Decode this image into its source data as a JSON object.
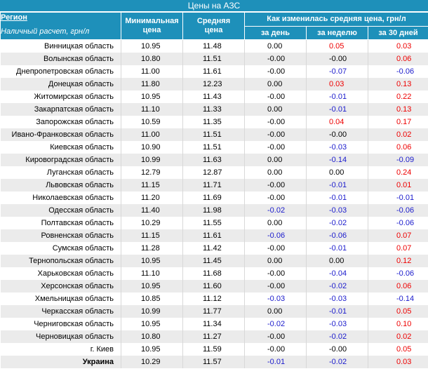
{
  "title": "Цены на АЗС",
  "header": {
    "region": "Регион",
    "payment": "Наличный расчет, грн/л",
    "min_price": [
      "Минимальная",
      "цена"
    ],
    "avg_price": [
      "Средняя",
      "цена"
    ],
    "change_group": "Как изменилась средняя цена, грн/л",
    "per_day": "за день",
    "per_week": "за неделю",
    "per_30": "за 30 дней"
  },
  "colors": {
    "header_bg": "#1e90ba",
    "increase": "#ee0000",
    "decrease": "#1a1acc",
    "stripe": "#ebebeb"
  },
  "rows": [
    {
      "region": "Винницкая область",
      "min": "10.95",
      "avg": "11.48",
      "day": "0.00",
      "week": "0.05",
      "month": "0.03"
    },
    {
      "region": "Волынская область",
      "min": "10.80",
      "avg": "11.51",
      "day": "-0.00",
      "week": "-0.00",
      "month": "0.06"
    },
    {
      "region": "Днепропетровская область",
      "min": "11.00",
      "avg": "11.61",
      "day": "-0.00",
      "week": "-0.07",
      "month": "-0.06"
    },
    {
      "region": "Донецкая область",
      "min": "11.80",
      "avg": "12.23",
      "day": "0.00",
      "week": "0.03",
      "month": "0.13"
    },
    {
      "region": "Житомирская область",
      "min": "10.95",
      "avg": "11.43",
      "day": "-0.00",
      "week": "-0.01",
      "month": "0.22"
    },
    {
      "region": "Закарпатская область",
      "min": "11.10",
      "avg": "11.33",
      "day": "0.00",
      "week": "-0.01",
      "month": "0.13"
    },
    {
      "region": "Запорожская область",
      "min": "10.59",
      "avg": "11.35",
      "day": "-0.00",
      "week": "0.04",
      "month": "0.17"
    },
    {
      "region": "Ивано-Франковская область",
      "min": "11.00",
      "avg": "11.51",
      "day": "-0.00",
      "week": "-0.00",
      "month": "0.02"
    },
    {
      "region": "Киевская область",
      "min": "10.90",
      "avg": "11.51",
      "day": "-0.00",
      "week": "-0.03",
      "month": "0.06"
    },
    {
      "region": "Кировоградская область",
      "min": "10.99",
      "avg": "11.63",
      "day": "0.00",
      "week": "-0.14",
      "month": "-0.09"
    },
    {
      "region": "Луганская область",
      "min": "12.79",
      "avg": "12.87",
      "day": "0.00",
      "week": "0.00",
      "month": "0.24"
    },
    {
      "region": "Львовская область",
      "min": "11.15",
      "avg": "11.71",
      "day": "-0.00",
      "week": "-0.01",
      "month": "0.01"
    },
    {
      "region": "Николаевская область",
      "min": "11.20",
      "avg": "11.69",
      "day": "-0.00",
      "week": "-0.01",
      "month": "-0.01"
    },
    {
      "region": "Одесская область",
      "min": "11.40",
      "avg": "11.98",
      "day": "-0.02",
      "week": "-0.03",
      "month": "-0.06"
    },
    {
      "region": "Полтавская область",
      "min": "10.29",
      "avg": "11.55",
      "day": "0.00",
      "week": "-0.02",
      "month": "-0.06"
    },
    {
      "region": "Ровненская область",
      "min": "11.15",
      "avg": "11.61",
      "day": "-0.06",
      "week": "-0.06",
      "month": "0.07"
    },
    {
      "region": "Сумская область",
      "min": "11.28",
      "avg": "11.42",
      "day": "-0.00",
      "week": "-0.01",
      "month": "0.07"
    },
    {
      "region": "Тернопольская область",
      "min": "10.95",
      "avg": "11.45",
      "day": "0.00",
      "week": "0.00",
      "month": "0.12"
    },
    {
      "region": "Харьковская область",
      "min": "11.10",
      "avg": "11.68",
      "day": "-0.00",
      "week": "-0.04",
      "month": "-0.06"
    },
    {
      "region": "Херсонская область",
      "min": "10.95",
      "avg": "11.60",
      "day": "-0.00",
      "week": "-0.02",
      "month": "0.06"
    },
    {
      "region": "Хмельницкая область",
      "min": "10.85",
      "avg": "11.12",
      "day": "-0.03",
      "week": "-0.03",
      "month": "-0.14"
    },
    {
      "region": "Черкасская область",
      "min": "10.99",
      "avg": "11.77",
      "day": "0.00",
      "week": "-0.01",
      "month": "0.05"
    },
    {
      "region": "Черниговская область",
      "min": "10.95",
      "avg": "11.34",
      "day": "-0.02",
      "week": "-0.03",
      "month": "0.10"
    },
    {
      "region": "Черновицкая область",
      "min": "10.80",
      "avg": "11.27",
      "day": "-0.00",
      "week": "-0.02",
      "month": "0.02"
    },
    {
      "region": "г. Киев",
      "min": "10.95",
      "avg": "11.59",
      "day": "-0.00",
      "week": "-0.00",
      "month": "0.05"
    },
    {
      "region": "Украина",
      "min": "10.29",
      "avg": "11.57",
      "day": "-0.01",
      "week": "-0.02",
      "month": "0.03",
      "total": true
    }
  ]
}
